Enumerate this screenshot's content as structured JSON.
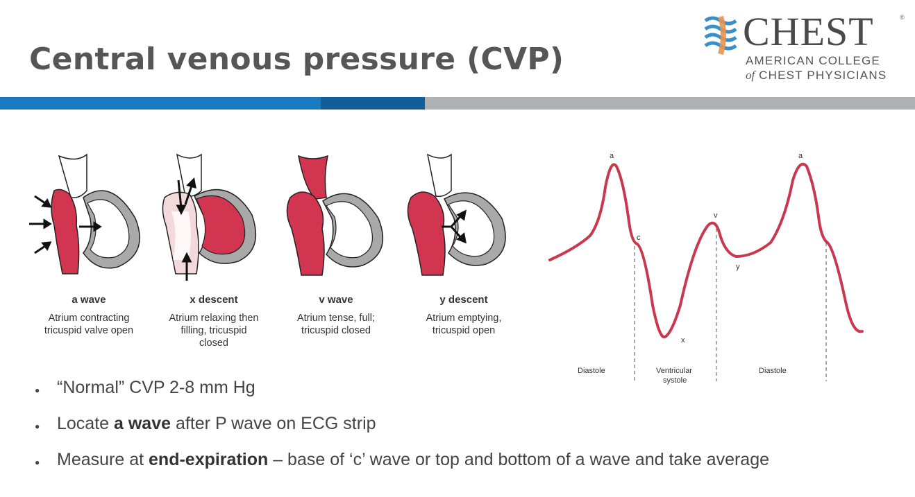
{
  "title": "Central venous pressure (CVP)",
  "logo": {
    "brand": "CHEST",
    "registered": "®",
    "line1": "AMERICAN COLLEGE",
    "line2_prefix": "of",
    "line2_rest": " CHEST PHYSICIANS"
  },
  "phases": [
    {
      "name": "a wave",
      "desc": [
        "Atrium contracting",
        "tricuspid valve open"
      ]
    },
    {
      "name": "x descent",
      "desc": [
        "Atrium relaxing then",
        "filling, tricuspid",
        "closed"
      ]
    },
    {
      "name": "v wave",
      "desc": [
        "Atrium tense, full;",
        "tricuspid closed"
      ]
    },
    {
      "name": "y descent",
      "desc": [
        "Atrium emptying,",
        "tricuspid open"
      ]
    }
  ],
  "waveform": {
    "peak_labels": {
      "a1": "a",
      "c": "c",
      "x": "x",
      "v": "v",
      "y": "y",
      "a2": "a"
    },
    "sections": [
      "Diastole",
      "Ventricular",
      "systole",
      "Diastole"
    ]
  },
  "bullets": [
    {
      "pre": "“Normal” CVP 2-8 mm Hg",
      "bold": "",
      "post": ""
    },
    {
      "pre": "Locate ",
      "bold": "a wave",
      "post": " after P wave on ECG strip"
    },
    {
      "pre": "Measure at ",
      "bold": "end-expiration",
      "post": " – base of ‘c’ wave or top and bottom of a wave and take average"
    }
  ],
  "colors": {
    "blood": "#d2354f",
    "waveform": "#c9384f",
    "bar_blue": "#1a7ac0",
    "bar_darkblue": "#135e98",
    "bar_gray": "#aeb2b6",
    "title": "#565656"
  }
}
